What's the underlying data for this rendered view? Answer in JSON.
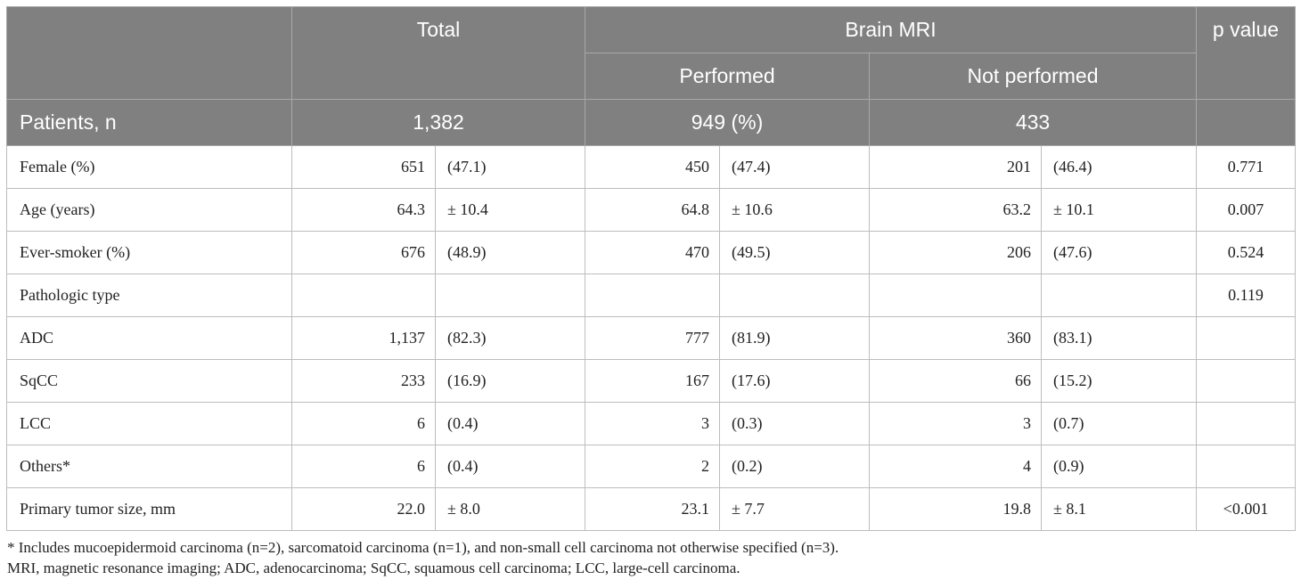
{
  "header": {
    "total": "Total",
    "brain_mri": "Brain MRI",
    "p_value": "p value",
    "performed": "Performed",
    "not_performed": "Not performed",
    "patients_label": "Patients, n",
    "patients_total": "1,382",
    "patients_performed": "949 (%)",
    "patients_not_performed": "433"
  },
  "rows": [
    {
      "label": "Female (%)",
      "t_n": "651",
      "t_v": "(47.1)",
      "p_n": "450",
      "p_v": "(47.4)",
      "n_n": "201",
      "n_v": "(46.4)",
      "p": "0.771"
    },
    {
      "label": "Age (years)",
      "t_n": "64.3",
      "t_v": "± 10.4",
      "p_n": "64.8",
      "p_v": "± 10.6",
      "n_n": "63.2",
      "n_v": "± 10.1",
      "p": "0.007"
    },
    {
      "label": "Ever-smoker (%)",
      "t_n": "676",
      "t_v": "(48.9)",
      "p_n": "470",
      "p_v": "(49.5)",
      "n_n": "206",
      "n_v": "(47.6)",
      "p": "0.524"
    },
    {
      "label": "Pathologic type",
      "t_n": "",
      "t_v": "",
      "p_n": "",
      "p_v": "",
      "n_n": "",
      "n_v": "",
      "p": "0.119"
    },
    {
      "label": "ADC",
      "t_n": "1,137",
      "t_v": "(82.3)",
      "p_n": "777",
      "p_v": "(81.9)",
      "n_n": "360",
      "n_v": "(83.1)",
      "p": ""
    },
    {
      "label": "SqCC",
      "t_n": "233",
      "t_v": "(16.9)",
      "p_n": "167",
      "p_v": "(17.6)",
      "n_n": "66",
      "n_v": "(15.2)",
      "p": ""
    },
    {
      "label": "LCC",
      "t_n": "6",
      "t_v": "(0.4)",
      "p_n": "3",
      "p_v": "(0.3)",
      "n_n": "3",
      "n_v": "(0.7)",
      "p": ""
    },
    {
      "label": "Others*",
      "t_n": "6",
      "t_v": "(0.4)",
      "p_n": "2",
      "p_v": "(0.2)",
      "n_n": "4",
      "n_v": "(0.9)",
      "p": ""
    },
    {
      "label": "Primary tumor size, mm",
      "t_n": "22.0",
      "t_v": "± 8.0",
      "p_n": "23.1",
      "p_v": "± 7.7",
      "n_n": "19.8",
      "n_v": "± 8.1",
      "p": "<0.001"
    }
  ],
  "footnotes": {
    "asterisk": "* Includes mucoepidermoid carcinoma (n=2), sarcomatoid carcinoma (n=1), and non-small cell carcinoma not otherwise specified (n=3).",
    "abbreviations": "MRI, magnetic resonance imaging; ADC, adenocarcinoma; SqCC, squamous cell carcinoma; LCC, large-cell carcinoma."
  }
}
